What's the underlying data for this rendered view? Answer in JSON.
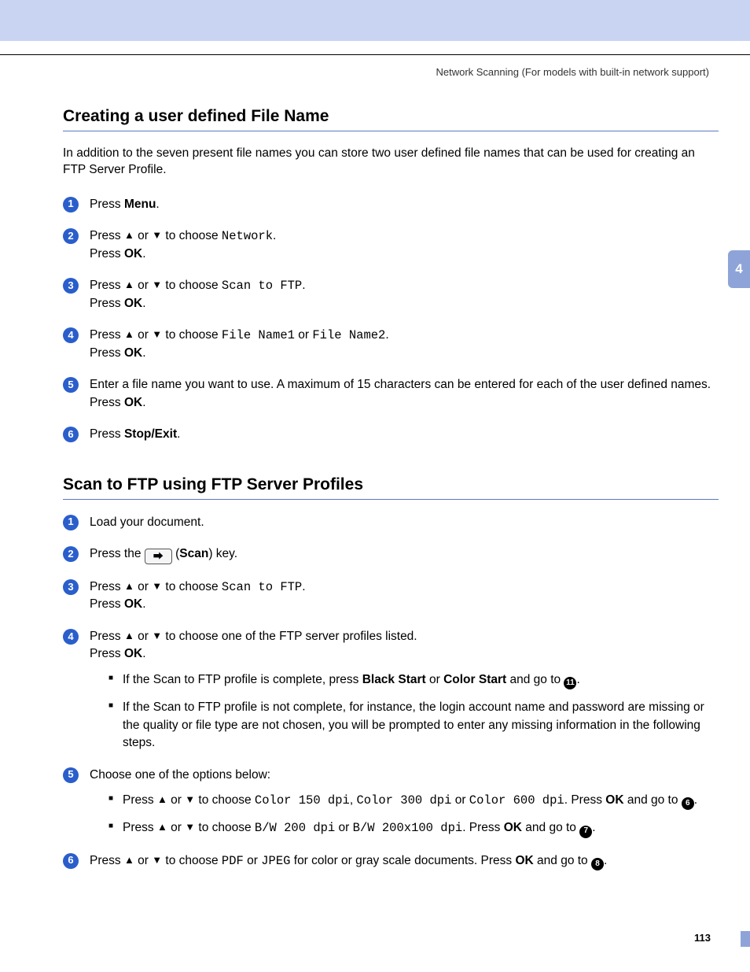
{
  "colors": {
    "topbar_bg": "#c8d4f2",
    "tab_bg": "#8ea4d8",
    "badge_bg": "#2a5ecb",
    "rule": "#5a78c0",
    "text": "#000000"
  },
  "breadcrumb": "Network Scanning  (For models with built-in network support)",
  "chapter_tab": "4",
  "page_number": "113",
  "section1": {
    "title": "Creating a user defined File Name",
    "intro": "In addition to the seven present file names you can store two user defined file names that can be used for creating an FTP Server Profile.",
    "steps": {
      "s1": {
        "press": "Press ",
        "menu": "Menu",
        "dot": "."
      },
      "s2": {
        "a": "Press ",
        "to_choose": " to choose ",
        "val": "Network",
        "dot": ".",
        "line2a": "Press ",
        "ok": "OK",
        "dot2": "."
      },
      "s3": {
        "a": "Press ",
        "to_choose": " to choose ",
        "val": "Scan to FTP",
        "dot": ".",
        "line2a": "Press ",
        "ok": "OK",
        "dot2": "."
      },
      "s4": {
        "a": "Press ",
        "to_choose": " to choose ",
        "val1": "File Name1",
        "or": " or ",
        "val2": "File Name2",
        "dot": ".",
        "line2a": "Press ",
        "ok": "OK",
        "dot2": "."
      },
      "s5": {
        "text": "Enter a file name you want to use. A maximum of 15 characters can be entered for each of the user defined names.",
        "line2a": "Press ",
        "ok": "OK",
        "dot2": "."
      },
      "s6": {
        "press": "Press ",
        "stop": "Stop/Exit",
        "dot": "."
      }
    }
  },
  "section2": {
    "title": "Scan to FTP using FTP Server Profiles",
    "steps": {
      "s1": {
        "text": "Load your document."
      },
      "s2": {
        "a": "Press the ",
        "key_glyph": "�ちり",
        "b": " (",
        "scan": "Scan",
        "c": ") key."
      },
      "s3": {
        "a": "Press ",
        "to_choose": " to choose ",
        "val": "Scan to FTP",
        "dot": ".",
        "line2a": "Press ",
        "ok": "OK",
        "dot2": "."
      },
      "s4": {
        "a": "Press ",
        "to_choose": " to choose one of the FTP server profiles listed.",
        "line2a": "Press ",
        "ok": "OK",
        "dot2": ".",
        "sub1a": "If the Scan to FTP profile is complete, press ",
        "black": "Black Start",
        "or": " or ",
        "color": "Color Start",
        "goto": " and go to ",
        "ref": "⓫",
        "dot3": ".",
        "sub2": "If the Scan to FTP profile is not complete, for instance, the login account name and password are missing or the quality or file type are not chosen, you will be prompted to enter any missing information in the following steps."
      },
      "s5": {
        "intro": "Choose one of the options below:",
        "sub1a": "Press ",
        "sub1b": " to choose ",
        "c150": "Color 150 dpi",
        "comma": ", ",
        "c300": "Color 300 dpi",
        "or1": " or ",
        "c600": "Color 600 dpi",
        "press_ok": ". Press ",
        "ok": "OK",
        "goto": " and go to ",
        "ref1": "6",
        "dot1": ".",
        "sub2a": "Press ",
        "sub2b": " to choose ",
        "bw200": "B/W 200 dpi",
        "or2": " or ",
        "bw100": "B/W 200x100 dpi",
        "press_ok2": ". Press ",
        "ok2": "OK",
        "goto2": " and go to ",
        "ref2": "7",
        "dot2": "."
      },
      "s6": {
        "a": "Press ",
        "to_choose": " to choose ",
        "pdf": "PDF",
        "or": " or ",
        "jpeg": "JPEG",
        "b": " for color or gray scale documents. Press ",
        "ok": "OK",
        "goto": " and go to ",
        "ref": "8",
        "dot": "."
      }
    }
  },
  "arrows": {
    "up": "▲",
    "down": "▼",
    "or": " or "
  }
}
